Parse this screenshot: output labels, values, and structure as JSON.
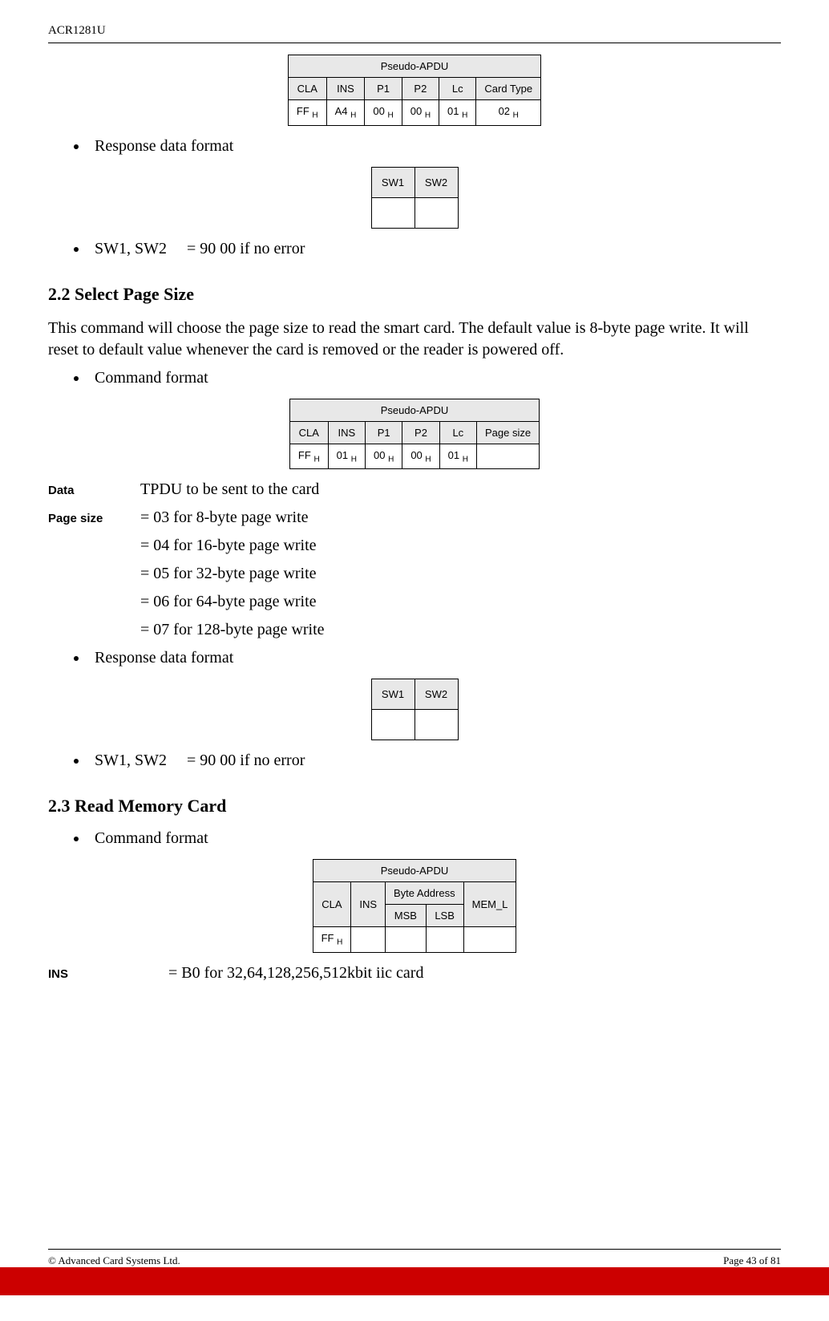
{
  "header": {
    "model": "ACR1281U"
  },
  "table_select_type": {
    "title": "Pseudo-APDU",
    "cols": [
      "CLA",
      "INS",
      "P1",
      "P2",
      "Lc",
      "Card Type"
    ],
    "row": [
      "FF",
      "A4",
      "00",
      "00",
      "01",
      "02"
    ],
    "sub": "H"
  },
  "block1": {
    "bullet_resp": "Response data format",
    "sw": {
      "h1": "SW1",
      "h2": "SW2"
    },
    "bullet_err_prefix": "SW1, SW2",
    "bullet_err_val": "= 90 00 if no error"
  },
  "sec22": {
    "heading": "2.2 Select Page Size",
    "para": "This command will choose the page size to read the smart card. The default value is 8-byte page write. It will reset to default value whenever the card is removed or the reader is powered off.",
    "bullet_cmd": "Command format"
  },
  "table_page_size": {
    "title": "Pseudo-APDU",
    "cols": [
      "CLA",
      "INS",
      "P1",
      "P2",
      "Lc",
      "Page size"
    ],
    "row": [
      "FF",
      "01",
      "00",
      "00",
      "01",
      ""
    ],
    "sub": "H"
  },
  "defs22": {
    "data_label": "Data",
    "data_val": "TPDU to be sent to the card",
    "ps_label": "Page size",
    "ps_lines": [
      "= 03  for 8-byte page write",
      "= 04  for 16-byte page write",
      "= 05  for 32-byte page write",
      "= 06  for 64-byte page write",
      "= 07  for 128-byte page write"
    ]
  },
  "block2": {
    "bullet_resp": "Response data format",
    "sw": {
      "h1": "SW1",
      "h2": "SW2"
    },
    "bullet_err_prefix": "SW1, SW2",
    "bullet_err_val": "= 90  00  if no error"
  },
  "sec23": {
    "heading": "2.3 Read Memory Card",
    "bullet_cmd": "Command format"
  },
  "table_read": {
    "title": "Pseudo-APDU",
    "c_cla": "CLA",
    "c_ins": "INS",
    "c_ba": "Byte Address",
    "c_msb": "MSB",
    "c_lsb": "LSB",
    "c_meml": "MEM_L",
    "r_cla": "FF",
    "sub": "H"
  },
  "defs23": {
    "ins_label": "INS",
    "ins_val": "= B0  for 32,64,128,256,512kbit iic card"
  },
  "footer": {
    "left": "© Advanced Card Systems Ltd.",
    "right": "Page 43 of 81"
  }
}
